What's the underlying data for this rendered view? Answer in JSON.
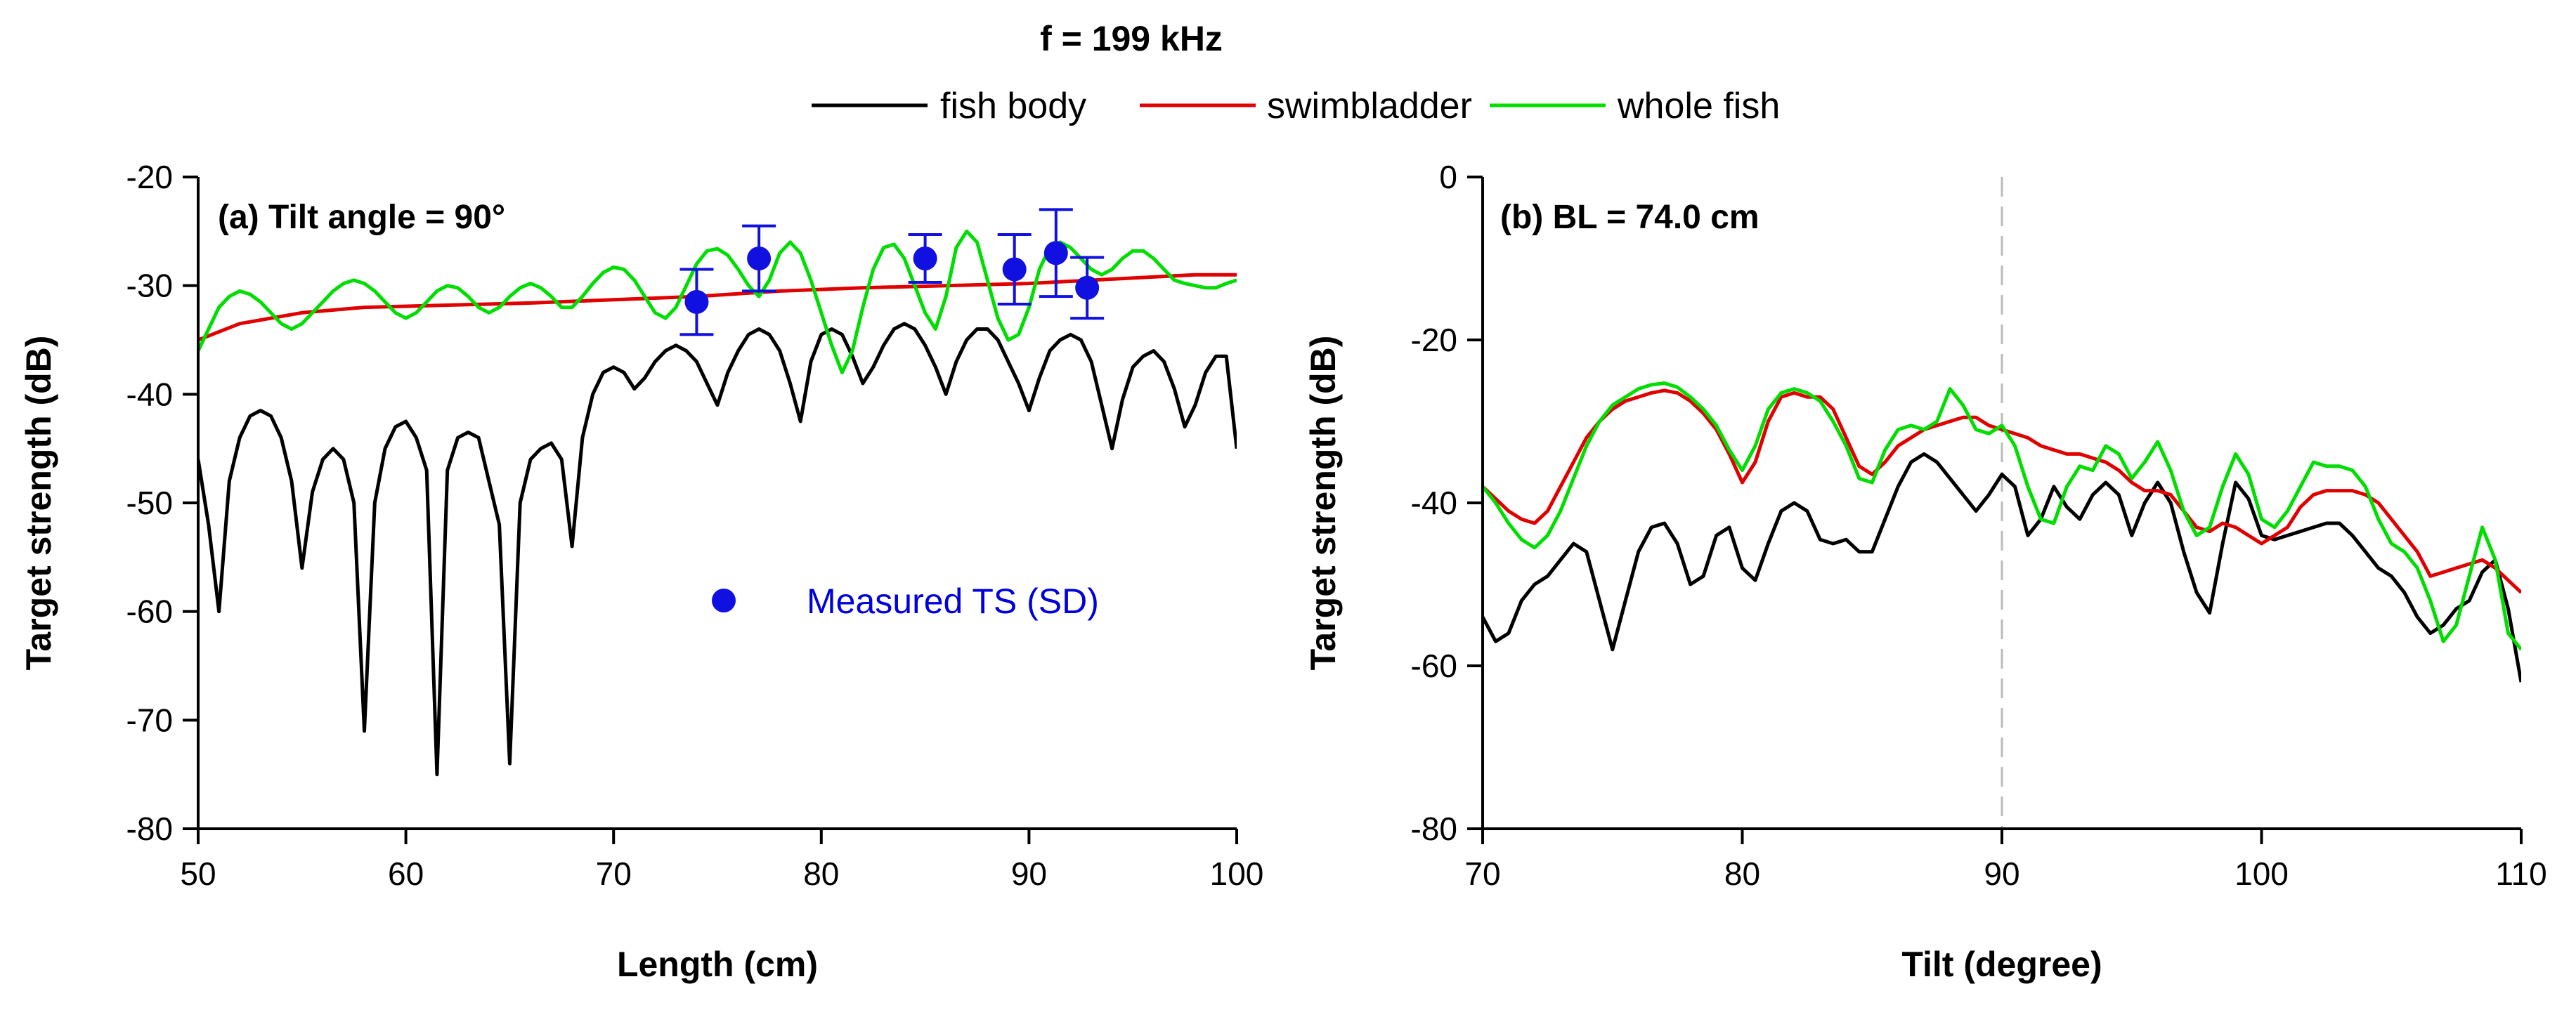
{
  "figure": {
    "title": "f = 199 kHz",
    "legend": [
      {
        "key": "fish_body",
        "label": "fish body",
        "color": "#000000"
      },
      {
        "key": "swimbladder",
        "label": "swimbladder",
        "color": "#e00000"
      },
      {
        "key": "whole_fish",
        "label": "whole fish",
        "color": "#00dd00"
      }
    ],
    "measured_color": "#1010e0",
    "measured_text_color": "#0000dd"
  },
  "chart_data": [
    {
      "id": "a",
      "type": "line",
      "panel_label": "(a) Tilt angle = 90°",
      "xlabel": "Length (cm)",
      "ylabel": "Target strength (dB)",
      "xlim": [
        50,
        100
      ],
      "ylim": [
        -80,
        -20
      ],
      "xticks": [
        50,
        60,
        70,
        80,
        90,
        100
      ],
      "yticks": [
        -80,
        -70,
        -60,
        -50,
        -40,
        -30,
        -20
      ],
      "series": [
        {
          "key": "fish_body",
          "name": "fish body",
          "x": [
            50,
            50.5,
            51,
            51.5,
            52,
            52.5,
            53,
            53.5,
            54,
            54.5,
            55,
            55.5,
            56,
            56.5,
            57,
            57.5,
            58,
            58.5,
            59,
            59.5,
            60,
            60.5,
            61,
            61.5,
            62,
            62.5,
            63,
            63.5,
            64,
            64.5,
            65,
            65.5,
            66,
            66.5,
            67,
            67.5,
            68,
            68.5,
            69,
            69.5,
            70,
            70.5,
            71,
            71.5,
            72,
            72.5,
            73,
            73.5,
            74,
            74.5,
            75,
            75.5,
            76,
            76.5,
            77,
            77.5,
            78,
            78.5,
            79,
            79.5,
            80,
            80.5,
            81,
            81.5,
            82,
            82.5,
            83,
            83.5,
            84,
            84.5,
            85,
            85.5,
            86,
            86.5,
            87,
            87.5,
            88,
            88.5,
            89,
            89.5,
            90,
            90.5,
            91,
            91.5,
            92,
            92.5,
            93,
            93.5,
            94,
            94.5,
            95,
            95.5,
            96,
            96.5,
            97,
            97.5,
            98,
            98.5,
            99,
            99.5,
            100
          ],
          "values": [
            -46,
            -52,
            -60,
            -48,
            -44,
            -42,
            -41.5,
            -42,
            -44,
            -48,
            -56,
            -49,
            -46,
            -45,
            -46,
            -50,
            -71,
            -50,
            -45,
            -43,
            -42.5,
            -44,
            -47,
            -75,
            -47,
            -44,
            -43.5,
            -44,
            -48,
            -52,
            -74,
            -50,
            -46,
            -45,
            -44.5,
            -46,
            -54,
            -44,
            -40,
            -38,
            -37.5,
            -38,
            -39.5,
            -38.5,
            -37,
            -36,
            -35.5,
            -36,
            -37,
            -39,
            -41,
            -38,
            -36,
            -34.5,
            -34,
            -34.5,
            -36,
            -39,
            -42.5,
            -37,
            -34.5,
            -34,
            -34.5,
            -36.5,
            -39,
            -37.5,
            -35.5,
            -34,
            -33.5,
            -34,
            -35.5,
            -37.5,
            -40,
            -37,
            -35,
            -34,
            -34,
            -35,
            -37,
            -39,
            -41.5,
            -38.5,
            -36,
            -35,
            -34.5,
            -35,
            -37,
            -41,
            -45,
            -40.5,
            -37.5,
            -36.5,
            -36,
            -37,
            -39.5,
            -43,
            -41,
            -38,
            -36.5,
            -36.5,
            -45
          ]
        },
        {
          "key": "swimbladder",
          "name": "swimbladder",
          "x": [
            50,
            52,
            55,
            58,
            62,
            66,
            70,
            74,
            78,
            82,
            86,
            90,
            94,
            98,
            100
          ],
          "values": [
            -35,
            -33.5,
            -32.5,
            -32,
            -31.8,
            -31.6,
            -31.3,
            -31,
            -30.5,
            -30.2,
            -30,
            -29.8,
            -29.4,
            -29,
            -29
          ]
        },
        {
          "key": "whole_fish",
          "name": "whole fish",
          "x": [
            50,
            50.5,
            51,
            51.5,
            52,
            52.5,
            53,
            53.5,
            54,
            54.5,
            55,
            55.5,
            56,
            56.5,
            57,
            57.5,
            58,
            58.5,
            59,
            59.5,
            60,
            60.5,
            61,
            61.5,
            62,
            62.5,
            63,
            63.5,
            64,
            64.5,
            65,
            65.5,
            66,
            66.5,
            67,
            67.5,
            68,
            68.5,
            69,
            69.5,
            70,
            70.5,
            71,
            71.5,
            72,
            72.5,
            73,
            73.5,
            74,
            74.5,
            75,
            75.5,
            76,
            76.5,
            77,
            77.5,
            78,
            78.5,
            79,
            79.5,
            80,
            80.5,
            81,
            81.5,
            82,
            82.5,
            83,
            83.5,
            84,
            84.5,
            85,
            85.5,
            86,
            86.5,
            87,
            87.5,
            88,
            88.5,
            89,
            89.5,
            90,
            90.5,
            91,
            91.5,
            92,
            92.5,
            93,
            93.5,
            94,
            94.5,
            95,
            95.5,
            96,
            96.5,
            97,
            97.5,
            98,
            98.5,
            99,
            99.5,
            100
          ],
          "values": [
            -36,
            -34,
            -32,
            -31,
            -30.5,
            -30.8,
            -31.5,
            -32.5,
            -33.5,
            -34,
            -33.5,
            -32.5,
            -31.5,
            -30.5,
            -29.8,
            -29.5,
            -29.8,
            -30.5,
            -31.5,
            -32.5,
            -33,
            -32.5,
            -31.5,
            -30.5,
            -30,
            -30.2,
            -31,
            -32,
            -32.5,
            -32,
            -31,
            -30.2,
            -29.8,
            -30.2,
            -31,
            -32,
            -32,
            -31,
            -29.8,
            -28.8,
            -28.3,
            -28.5,
            -29.5,
            -31,
            -32.5,
            -33,
            -32,
            -30,
            -28,
            -26.8,
            -26.6,
            -27.2,
            -28.5,
            -30,
            -31,
            -29.5,
            -27,
            -26,
            -27,
            -29.5,
            -32.5,
            -35.5,
            -38,
            -36,
            -32,
            -28.5,
            -26.5,
            -26.2,
            -27.5,
            -30,
            -32.5,
            -34,
            -31,
            -26.5,
            -25,
            -26,
            -29.5,
            -33,
            -35,
            -34.5,
            -32,
            -28.5,
            -26.5,
            -26,
            -26.5,
            -27.5,
            -28.5,
            -29,
            -28.5,
            -27.5,
            -26.8,
            -26.8,
            -27.5,
            -28.5,
            -29.5,
            -29.8,
            -30,
            -30.2,
            -30.2,
            -29.8,
            -29.5
          ]
        }
      ],
      "measured": {
        "label": "Measured TS (SD)",
        "points": [
          {
            "x": 74,
            "y": -31.5,
            "sd": 3
          },
          {
            "x": 77,
            "y": -27.5,
            "sd": 3
          },
          {
            "x": 85,
            "y": -27.5,
            "sd": 2.2
          },
          {
            "x": 89.3,
            "y": -28.5,
            "sd": 3.2
          },
          {
            "x": 91.3,
            "y": -27,
            "sd": 4
          },
          {
            "x": 92.8,
            "y": -30.2,
            "sd": 2.8
          }
        ]
      }
    },
    {
      "id": "b",
      "type": "line",
      "panel_label": "(b) BL = 74.0 cm",
      "xlabel": "Tilt (degree)",
      "ylabel": "Target strength (dB)",
      "xlim": [
        70,
        110
      ],
      "ylim": [
        -80,
        0
      ],
      "xticks": [
        70,
        80,
        90,
        100,
        110
      ],
      "yticks": [
        -80,
        -60,
        -40,
        -20,
        0
      ],
      "reference_x": 90,
      "series": [
        {
          "key": "fish_body",
          "name": "fish body",
          "x": [
            70,
            70.5,
            71,
            71.5,
            72,
            72.5,
            73,
            73.5,
            74,
            74.5,
            75,
            75.5,
            76,
            76.5,
            77,
            77.5,
            78,
            78.5,
            79,
            79.5,
            80,
            80.5,
            81,
            81.5,
            82,
            82.5,
            83,
            83.5,
            84,
            84.5,
            85,
            85.5,
            86,
            86.5,
            87,
            87.5,
            88,
            88.5,
            89,
            89.5,
            90,
            90.5,
            91,
            91.5,
            92,
            92.5,
            93,
            93.5,
            94,
            94.5,
            95,
            95.5,
            96,
            96.5,
            97,
            97.5,
            98,
            98.5,
            99,
            99.5,
            100,
            100.5,
            101,
            101.5,
            102,
            102.5,
            103,
            103.5,
            104,
            104.5,
            105,
            105.5,
            106,
            106.5,
            107,
            107.5,
            108,
            108.5,
            109,
            109.5,
            110
          ],
          "values": [
            -54,
            -57,
            -56,
            -52,
            -50,
            -49,
            -47,
            -45,
            -46,
            -52,
            -58,
            -52,
            -46,
            -43,
            -42.5,
            -45,
            -50,
            -49,
            -44,
            -43,
            -48,
            -49.5,
            -45,
            -41,
            -40,
            -41,
            -44.5,
            -45,
            -44.5,
            -46,
            -46,
            -42,
            -38,
            -35,
            -34,
            -35,
            -37,
            -39,
            -41,
            -39,
            -36.5,
            -38,
            -44,
            -42,
            -38,
            -40.5,
            -42,
            -39,
            -37.5,
            -39,
            -44,
            -40,
            -37.5,
            -40,
            -46,
            -51,
            -53.5,
            -45,
            -37.5,
            -39.5,
            -44,
            -44.5,
            -44,
            -43.5,
            -43,
            -42.5,
            -42.5,
            -44,
            -46,
            -48,
            -49,
            -51,
            -54,
            -56,
            -55,
            -53,
            -52,
            -48.5,
            -47,
            -53,
            -62
          ]
        },
        {
          "key": "swimbladder",
          "name": "swimbladder",
          "x": [
            70,
            70.5,
            71,
            71.5,
            72,
            72.5,
            73,
            73.5,
            74,
            74.5,
            75,
            75.5,
            76,
            76.5,
            77,
            77.5,
            78,
            78.5,
            79,
            79.5,
            80,
            80.5,
            81,
            81.5,
            82,
            82.5,
            83,
            83.5,
            84,
            84.5,
            85,
            85.5,
            86,
            86.5,
            87,
            87.5,
            88,
            88.5,
            89,
            89.5,
            90,
            90.5,
            91,
            91.5,
            92,
            92.5,
            93,
            93.5,
            94,
            94.5,
            95,
            95.5,
            96,
            96.5,
            97,
            97.5,
            98,
            98.5,
            99,
            99.5,
            100,
            100.5,
            101,
            101.5,
            102,
            102.5,
            103,
            103.5,
            104,
            104.5,
            105,
            105.5,
            106,
            106.5,
            107,
            107.5,
            108,
            108.5,
            109,
            109.5,
            110
          ],
          "values": [
            -38,
            -39.5,
            -41,
            -42,
            -42.5,
            -41,
            -38,
            -35,
            -32,
            -30,
            -28.5,
            -27.5,
            -27,
            -26.5,
            -26.2,
            -26.5,
            -27.5,
            -29,
            -31,
            -34,
            -37.5,
            -35,
            -30,
            -27,
            -26.5,
            -27,
            -27,
            -28.5,
            -32,
            -35.5,
            -36.5,
            -35,
            -33,
            -32,
            -31,
            -30.5,
            -30,
            -29.5,
            -29.5,
            -30.5,
            -31,
            -31.5,
            -32,
            -33,
            -33.5,
            -34,
            -34,
            -34.5,
            -35,
            -36,
            -37.5,
            -38.5,
            -38.5,
            -39,
            -41,
            -43,
            -43.5,
            -42.5,
            -43,
            -44,
            -45,
            -44,
            -43,
            -40.5,
            -39,
            -38.5,
            -38.5,
            -38.5,
            -39,
            -40,
            -42,
            -44,
            -46,
            -49,
            -48.5,
            -48,
            -47.5,
            -47,
            -48,
            -49.5,
            -51
          ]
        },
        {
          "key": "whole_fish",
          "name": "whole fish",
          "x": [
            70,
            70.5,
            71,
            71.5,
            72,
            72.5,
            73,
            73.5,
            74,
            74.5,
            75,
            75.5,
            76,
            76.5,
            77,
            77.5,
            78,
            78.5,
            79,
            79.5,
            80,
            80.5,
            81,
            81.5,
            82,
            82.5,
            83,
            83.5,
            84,
            84.5,
            85,
            85.5,
            86,
            86.5,
            87,
            87.5,
            88,
            88.5,
            89,
            89.5,
            90,
            90.5,
            91,
            91.5,
            92,
            92.5,
            93,
            93.5,
            94,
            94.5,
            95,
            95.5,
            96,
            96.5,
            97,
            97.5,
            98,
            98.5,
            99,
            99.5,
            100,
            100.5,
            101,
            101.5,
            102,
            102.5,
            103,
            103.5,
            104,
            104.5,
            105,
            105.5,
            106,
            106.5,
            107,
            107.5,
            108,
            108.5,
            109,
            109.5,
            110
          ],
          "values": [
            -38,
            -40,
            -42.5,
            -44.5,
            -45.5,
            -44,
            -41,
            -37,
            -33,
            -30,
            -28,
            -27,
            -26,
            -25.5,
            -25.3,
            -25.8,
            -27,
            -28.5,
            -30.5,
            -33.5,
            -36,
            -33,
            -28.5,
            -26.5,
            -26,
            -26.5,
            -27.5,
            -30,
            -33,
            -37,
            -37.5,
            -33.5,
            -31,
            -30.5,
            -31,
            -30,
            -26,
            -28,
            -31,
            -31.5,
            -30.5,
            -33,
            -38,
            -42,
            -42.5,
            -38,
            -35.5,
            -36,
            -33,
            -34,
            -37,
            -35,
            -32.5,
            -36,
            -41,
            -44,
            -43,
            -38,
            -34,
            -36.5,
            -42,
            -43,
            -41,
            -38,
            -35,
            -35.5,
            -35.5,
            -36,
            -38,
            -42,
            -45,
            -46,
            -48,
            -52,
            -57,
            -55,
            -49,
            -43,
            -47,
            -56,
            -58
          ]
        }
      ]
    }
  ]
}
